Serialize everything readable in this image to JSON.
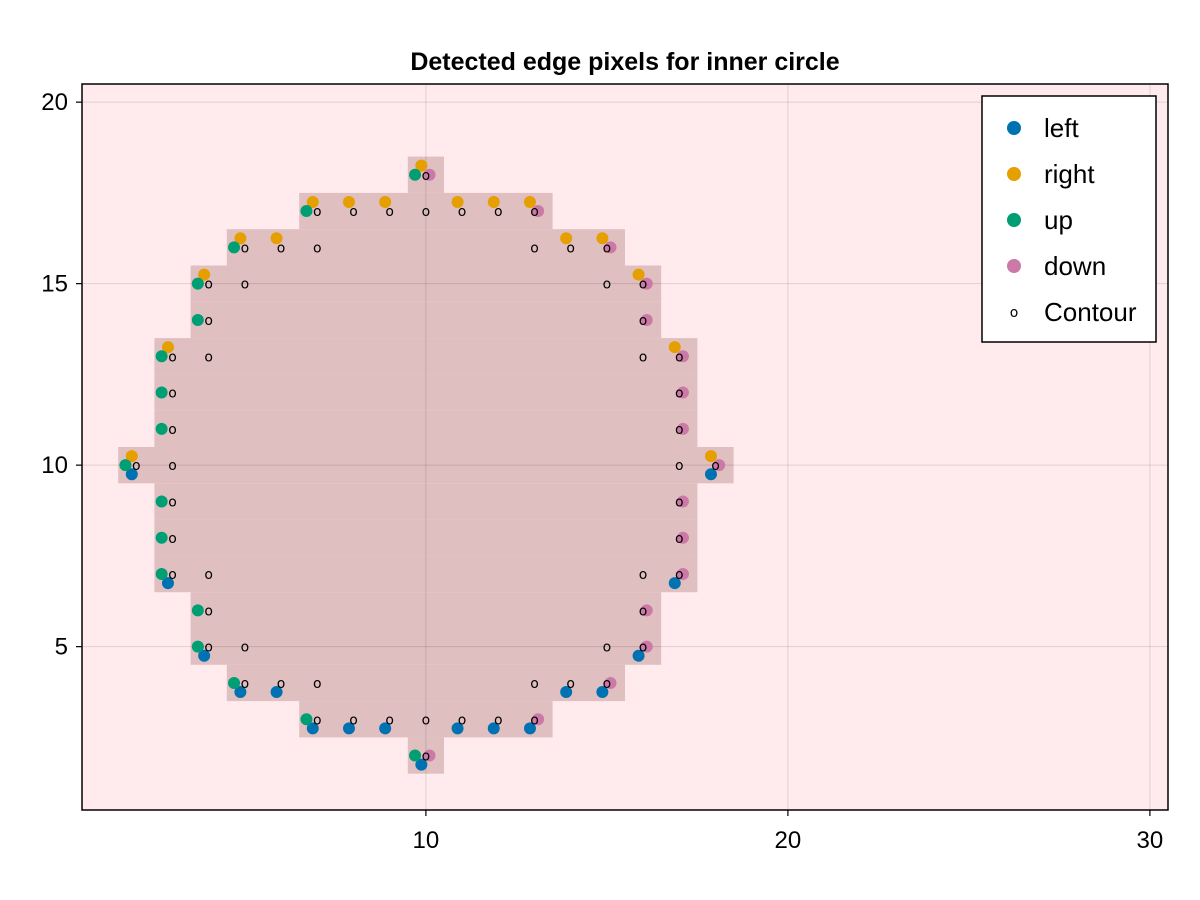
{
  "chart_data": {
    "type": "scatter",
    "title": "Detected edge pixels for inner circle",
    "xlabel": "",
    "ylabel": "",
    "xlim": [
      0.5,
      30.5
    ],
    "ylim": [
      0.5,
      20.5
    ],
    "x_ticks": [
      10,
      20,
      30
    ],
    "y_ticks": [
      5,
      10,
      15,
      20
    ],
    "x_tick_labels": [
      "10",
      "20",
      "30"
    ],
    "y_tick_labels": [
      "5",
      "10",
      "15",
      "20"
    ],
    "grid": true,
    "legend_position": "top-right",
    "background_color": "#ffebee",
    "mask_color": "#e0bfc0",
    "mask_runs": [
      {
        "y": 2,
        "x_start": 10,
        "x_end": 10
      },
      {
        "y": 3,
        "x_start": 7,
        "x_end": 13
      },
      {
        "y": 4,
        "x_start": 5,
        "x_end": 15
      },
      {
        "y": 5,
        "x_start": 4,
        "x_end": 16
      },
      {
        "y": 6,
        "x_start": 4,
        "x_end": 16
      },
      {
        "y": 7,
        "x_start": 3,
        "x_end": 17
      },
      {
        "y": 8,
        "x_start": 3,
        "x_end": 17
      },
      {
        "y": 9,
        "x_start": 3,
        "x_end": 17
      },
      {
        "y": 10,
        "x_start": 2,
        "x_end": 18
      },
      {
        "y": 11,
        "x_start": 3,
        "x_end": 17
      },
      {
        "y": 12,
        "x_start": 3,
        "x_end": 17
      },
      {
        "y": 13,
        "x_start": 3,
        "x_end": 17
      },
      {
        "y": 14,
        "x_start": 4,
        "x_end": 16
      },
      {
        "y": 15,
        "x_start": 4,
        "x_end": 16
      },
      {
        "y": 16,
        "x_start": 5,
        "x_end": 15
      },
      {
        "y": 17,
        "x_start": 7,
        "x_end": 13
      },
      {
        "y": 18,
        "x_start": 10,
        "x_end": 10
      }
    ],
    "series": [
      {
        "name": "left",
        "color": "#0072b2",
        "marker": "circle",
        "offset": [
          -0.25,
          -0.5
        ],
        "points": [
          [
            2,
            10
          ],
          [
            3,
            7
          ],
          [
            4,
            5
          ],
          [
            5,
            4
          ],
          [
            6,
            4
          ],
          [
            7,
            3
          ],
          [
            8,
            3
          ],
          [
            9,
            3
          ],
          [
            10,
            2
          ],
          [
            11,
            3
          ],
          [
            12,
            3
          ],
          [
            13,
            3
          ],
          [
            14,
            4
          ],
          [
            15,
            4
          ],
          [
            16,
            5
          ],
          [
            17,
            7
          ],
          [
            18,
            10
          ]
        ]
      },
      {
        "name": "right",
        "color": "#e69f00",
        "marker": "circle",
        "offset": [
          -0.25,
          0.5
        ],
        "points": [
          [
            2,
            10
          ],
          [
            3,
            13
          ],
          [
            4,
            15
          ],
          [
            5,
            16
          ],
          [
            6,
            16
          ],
          [
            7,
            17
          ],
          [
            8,
            17
          ],
          [
            9,
            17
          ],
          [
            10,
            18
          ],
          [
            11,
            17
          ],
          [
            12,
            17
          ],
          [
            13,
            17
          ],
          [
            14,
            16
          ],
          [
            15,
            16
          ],
          [
            16,
            15
          ],
          [
            17,
            13
          ],
          [
            18,
            10
          ]
        ]
      },
      {
        "name": "up",
        "color": "#009e73",
        "marker": "circle",
        "offset": [
          -0.6,
          0
        ],
        "points": [
          [
            10,
            18
          ],
          [
            7,
            17
          ],
          [
            5,
            16
          ],
          [
            4,
            15
          ],
          [
            4,
            14
          ],
          [
            3,
            13
          ],
          [
            3,
            12
          ],
          [
            3,
            11
          ],
          [
            2,
            10
          ],
          [
            3,
            9
          ],
          [
            3,
            8
          ],
          [
            3,
            7
          ],
          [
            4,
            6
          ],
          [
            4,
            5
          ],
          [
            5,
            4
          ],
          [
            7,
            3
          ],
          [
            10,
            2
          ]
        ]
      },
      {
        "name": "down",
        "color": "#cc79a7",
        "marker": "circle",
        "offset": [
          0.2,
          0
        ],
        "points": [
          [
            10,
            18
          ],
          [
            13,
            17
          ],
          [
            15,
            16
          ],
          [
            16,
            15
          ],
          [
            16,
            14
          ],
          [
            17,
            13
          ],
          [
            17,
            12
          ],
          [
            17,
            11
          ],
          [
            18,
            10
          ],
          [
            17,
            9
          ],
          [
            17,
            8
          ],
          [
            17,
            7
          ],
          [
            16,
            6
          ],
          [
            16,
            5
          ],
          [
            15,
            4
          ],
          [
            13,
            3
          ],
          [
            10,
            2
          ]
        ]
      },
      {
        "name": "Contour",
        "color": "#000000",
        "marker": "o",
        "offset": [
          0,
          0
        ],
        "points": [
          [
            10,
            18
          ],
          [
            7,
            17
          ],
          [
            8,
            17
          ],
          [
            9,
            17
          ],
          [
            10,
            17
          ],
          [
            11,
            17
          ],
          [
            12,
            17
          ],
          [
            13,
            17
          ],
          [
            5,
            16
          ],
          [
            6,
            16
          ],
          [
            7,
            16
          ],
          [
            13,
            16
          ],
          [
            14,
            16
          ],
          [
            15,
            16
          ],
          [
            5,
            15
          ],
          [
            4,
            15
          ],
          [
            15,
            15
          ],
          [
            16,
            15
          ],
          [
            4,
            14
          ],
          [
            16,
            14
          ],
          [
            3,
            13
          ],
          [
            4,
            13
          ],
          [
            16,
            13
          ],
          [
            17,
            13
          ],
          [
            3,
            12
          ],
          [
            17,
            12
          ],
          [
            3,
            11
          ],
          [
            17,
            11
          ],
          [
            2,
            10
          ],
          [
            3,
            10
          ],
          [
            17,
            10
          ],
          [
            18,
            10
          ],
          [
            3,
            9
          ],
          [
            17,
            9
          ],
          [
            3,
            8
          ],
          [
            17,
            8
          ],
          [
            3,
            7
          ],
          [
            4,
            7
          ],
          [
            16,
            7
          ],
          [
            17,
            7
          ],
          [
            4,
            6
          ],
          [
            16,
            6
          ],
          [
            4,
            5
          ],
          [
            5,
            5
          ],
          [
            15,
            5
          ],
          [
            16,
            5
          ],
          [
            5,
            4
          ],
          [
            6,
            4
          ],
          [
            7,
            4
          ],
          [
            13,
            4
          ],
          [
            14,
            4
          ],
          [
            15,
            4
          ],
          [
            7,
            3
          ],
          [
            8,
            3
          ],
          [
            9,
            3
          ],
          [
            10,
            3
          ],
          [
            11,
            3
          ],
          [
            12,
            3
          ],
          [
            13,
            3
          ],
          [
            10,
            2
          ]
        ]
      }
    ]
  }
}
